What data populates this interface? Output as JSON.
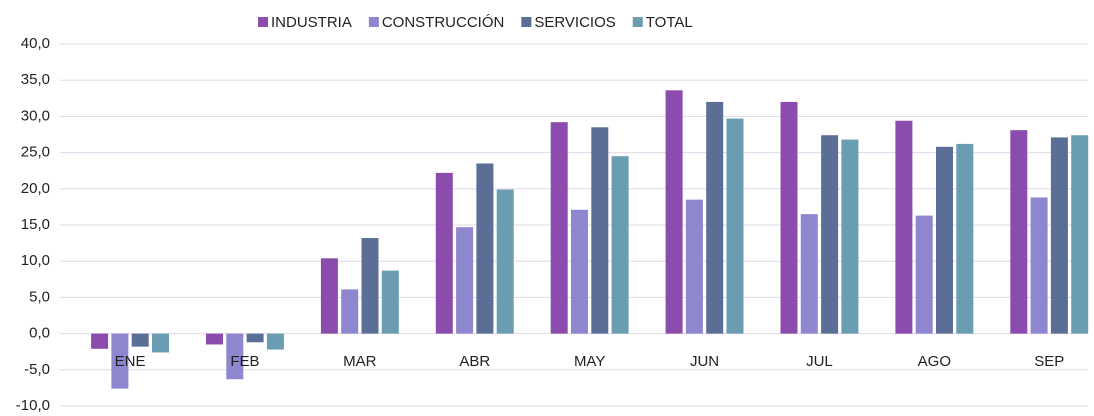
{
  "chart_data": {
    "type": "bar",
    "categories": [
      "ENE",
      "FEB",
      "MAR",
      "ABR",
      "MAY",
      "JUN",
      "JUL",
      "AGO",
      "SEP"
    ],
    "series": [
      {
        "name": "INDUSTRIA",
        "color": "#8b4cae",
        "values": [
          -2.1,
          -1.5,
          10.4,
          22.2,
          29.2,
          33.6,
          32.0,
          29.4,
          28.1
        ]
      },
      {
        "name": "CONSTRUCCIÓN",
        "color": "#8e86cf",
        "values": [
          -7.6,
          -6.3,
          6.1,
          14.7,
          17.1,
          18.5,
          16.5,
          16.3,
          18.8
        ]
      },
      {
        "name": "SERVICIOS",
        "color": "#5b6e96",
        "values": [
          -1.8,
          -1.2,
          13.2,
          23.5,
          28.5,
          32.0,
          27.4,
          25.8,
          27.1
        ]
      },
      {
        "name": "TOTAL",
        "color": "#6a9cb2",
        "values": [
          -2.6,
          -2.2,
          8.7,
          19.9,
          24.5,
          29.7,
          26.8,
          26.2,
          27.4
        ]
      }
    ],
    "ylim": [
      -10,
      40
    ],
    "yticks": [
      {
        "value": -10,
        "label": "-10,0"
      },
      {
        "value": -5,
        "label": "-5,0"
      },
      {
        "value": 0,
        "label": "0,0"
      },
      {
        "value": 5,
        "label": "5,0"
      },
      {
        "value": 10,
        "label": "10,0"
      },
      {
        "value": 15,
        "label": "15,0"
      },
      {
        "value": 20,
        "label": "20,0"
      },
      {
        "value": 25,
        "label": "25,0"
      },
      {
        "value": 30,
        "label": "30,0"
      },
      {
        "value": 35,
        "label": "35,0"
      },
      {
        "value": 40,
        "label": "40,0"
      }
    ],
    "grid": true,
    "legend": "top"
  }
}
